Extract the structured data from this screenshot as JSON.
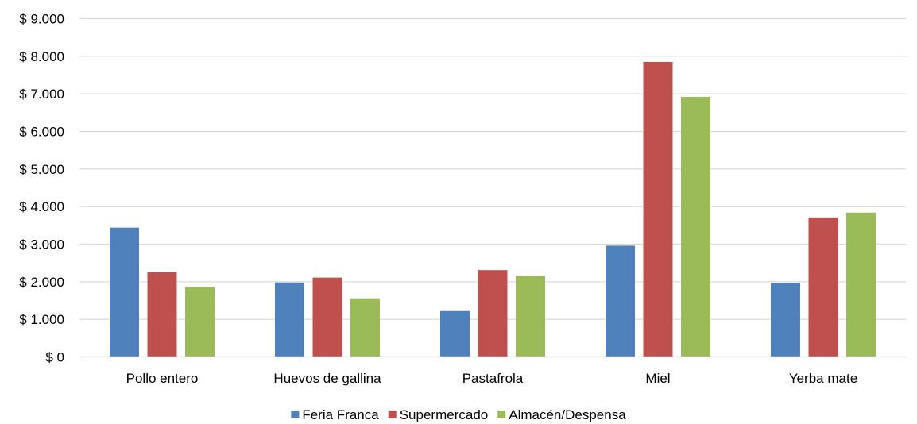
{
  "chart_data": {
    "type": "bar",
    "title": "",
    "xlabel": "",
    "ylabel": "",
    "categories": [
      "Pollo entero",
      "Huevos de gallina",
      "Pastafrola",
      "Miel",
      "Yerba mate"
    ],
    "series": [
      {
        "name": "Feria Franca",
        "color": "#4f81bd",
        "values": [
          3440,
          1980,
          1220,
          2960,
          1970
        ]
      },
      {
        "name": "Supermercado",
        "color": "#c0504d",
        "values": [
          2250,
          2110,
          2310,
          7850,
          3710
        ]
      },
      {
        "name": "Almacén/Despensa",
        "color": "#9bbb59",
        "values": [
          1860,
          1560,
          2160,
          6920,
          3840
        ]
      }
    ],
    "ylim": [
      0,
      9000
    ],
    "yticks": [
      0,
      1000,
      2000,
      3000,
      4000,
      5000,
      6000,
      7000,
      8000,
      9000
    ],
    "ytick_labels": [
      "$ 0",
      "$ 1.000",
      "$ 2.000",
      "$ 3.000",
      "$ 4.000",
      "$ 5.000",
      "$ 6.000",
      "$ 7.000",
      "$ 8.000",
      "$ 9.000"
    ],
    "grid": true,
    "gridline_color": "#d9d9d9",
    "legend_position": "bottom-center"
  }
}
